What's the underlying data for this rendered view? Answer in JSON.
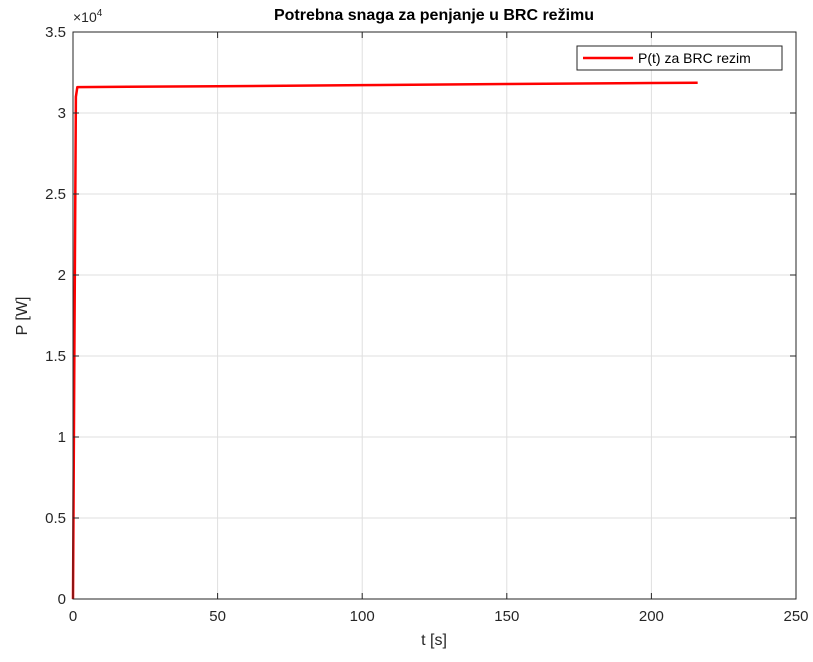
{
  "chart_data": {
    "type": "line",
    "title": "Potrebna snaga za penjanje u BRC režimu",
    "xlabel": "t [s]",
    "ylabel": "P [W]",
    "xlim": [
      0,
      250
    ],
    "ylim": [
      0,
      35000
    ],
    "x_ticks": [
      0,
      50,
      100,
      150,
      200,
      250
    ],
    "x_tick_labels": [
      "0",
      "50",
      "100",
      "150",
      "200",
      "250"
    ],
    "y_ticks": [
      0,
      5000,
      10000,
      15000,
      20000,
      25000,
      30000,
      35000
    ],
    "y_tick_labels": [
      "0",
      "0.5",
      "1",
      "1.5",
      "2",
      "2.5",
      "3",
      "3.5"
    ],
    "y_exponent_label": "×10",
    "y_exponent_power": "4",
    "grid": true,
    "legend_position": "top-right",
    "series": [
      {
        "name": "P(t) za BRC rezim",
        "color": "#ff0000",
        "x": [
          0,
          0.5,
          1,
          1.5,
          50,
          100,
          150,
          200,
          216
        ],
        "y": [
          0,
          16000,
          31000,
          31600,
          31650,
          31720,
          31790,
          31850,
          31870
        ]
      }
    ]
  }
}
